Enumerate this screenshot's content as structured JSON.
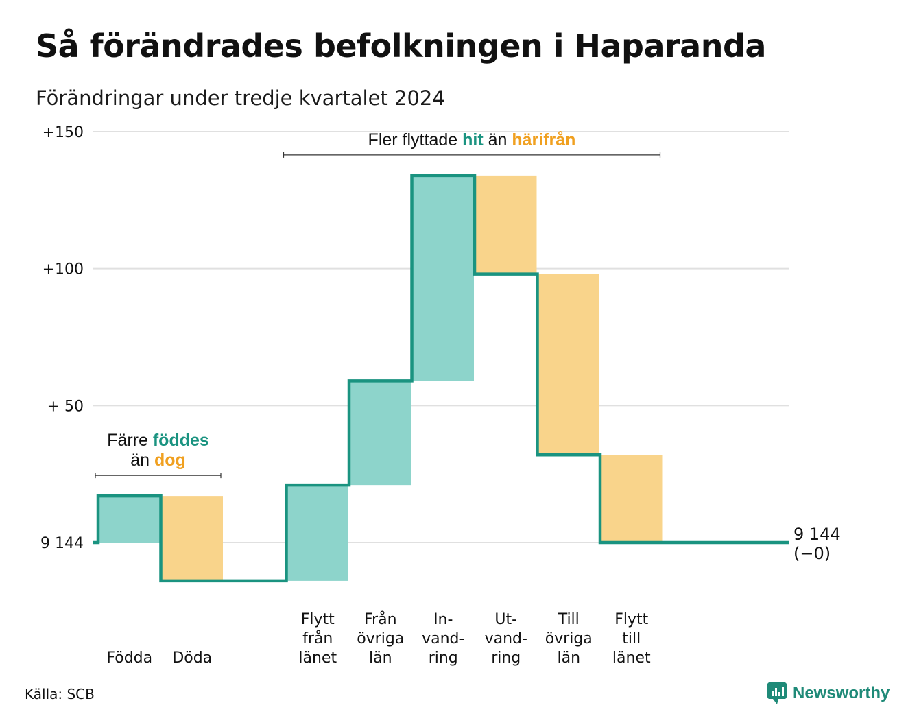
{
  "title": "Så förändrades befolkningen i Haparanda",
  "subtitle": "Förändringar under tredje kvartalet 2024",
  "source": "Källa: SCB",
  "brand": "Newsworthy",
  "colors": {
    "increase_fill": "#8dd4cb",
    "decrease_fill": "#f9d48b",
    "line": "#1a9380",
    "teal_text": "#1a9380",
    "orange_text": "#f0a020",
    "grid": "#e0e0e0"
  },
  "chart_data": {
    "type": "waterfall",
    "base_value": 9144,
    "y_ticks": [
      {
        "value": 0,
        "label": "9 144"
      },
      {
        "value": 50,
        "label": "+ 50"
      },
      {
        "value": 100,
        "label": "+100"
      },
      {
        "value": 150,
        "label": "+150"
      }
    ],
    "ylim": [
      -25,
      150
    ],
    "steps": [
      {
        "label_lines": [
          "Födda"
        ],
        "value": 17,
        "kind": "increase"
      },
      {
        "label_lines": [
          "Döda"
        ],
        "value": -31,
        "kind": "decrease"
      },
      {
        "label_lines": [],
        "value": 0,
        "kind": "gap"
      },
      {
        "label_lines": [
          "Flytt",
          "från",
          "länet"
        ],
        "value": 35,
        "kind": "increase"
      },
      {
        "label_lines": [
          "Från",
          "övriga",
          "län"
        ],
        "value": 38,
        "kind": "increase"
      },
      {
        "label_lines": [
          "In-",
          "vand-",
          "ring"
        ],
        "value": 75,
        "kind": "increase"
      },
      {
        "label_lines": [
          "Ut-",
          "vand-",
          "ring"
        ],
        "value": -36,
        "kind": "decrease"
      },
      {
        "label_lines": [
          "Till",
          "övriga",
          "län"
        ],
        "value": -66,
        "kind": "decrease"
      },
      {
        "label_lines": [
          "Flytt",
          "till",
          "länet"
        ],
        "value": -32,
        "kind": "decrease"
      }
    ],
    "end_label_lines": [
      "9 144",
      "(−0)"
    ],
    "annotations": [
      {
        "id": "births",
        "first_step": 0,
        "last_step": 1,
        "lines": [
          [
            {
              "text": "Färre ",
              "style": "plain"
            },
            {
              "text": "föddes",
              "style": "teal"
            }
          ],
          [
            {
              "text": "än ",
              "style": "plain"
            },
            {
              "text": "dog",
              "style": "orange"
            }
          ]
        ]
      },
      {
        "id": "migration",
        "first_step": 3,
        "last_step": 8,
        "lines": [
          [
            {
              "text": "Fler flyttade ",
              "style": "plain"
            },
            {
              "text": "hit",
              "style": "teal"
            },
            {
              "text": " än ",
              "style": "plain"
            },
            {
              "text": "härifrån",
              "style": "orange"
            }
          ]
        ]
      }
    ]
  }
}
